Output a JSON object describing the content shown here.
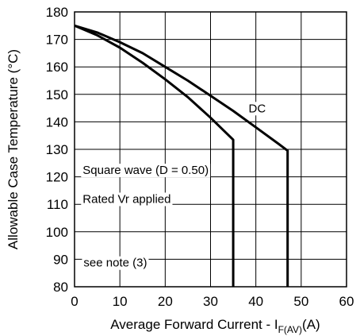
{
  "chart_data": {
    "type": "line",
    "title": "",
    "xlabel_main": "Average Forward Current - I",
    "xlabel_sub": "F(AV)",
    "xlabel_unit": "(A)",
    "ylabel": "Allowable Case Temperature (°C)",
    "xlim": [
      0,
      60
    ],
    "ylim": [
      80,
      180
    ],
    "xticks": [
      0,
      10,
      20,
      30,
      40,
      50,
      60
    ],
    "yticks": [
      80,
      90,
      100,
      110,
      120,
      130,
      140,
      150,
      160,
      170,
      180
    ],
    "grid": true,
    "series": [
      {
        "name": "DC",
        "color": "#000000",
        "points": [
          [
            0,
            175
          ],
          [
            5,
            172.5
          ],
          [
            10,
            169
          ],
          [
            15,
            165
          ],
          [
            20,
            160
          ],
          [
            25,
            155
          ],
          [
            30,
            149.5
          ],
          [
            35,
            144
          ],
          [
            40,
            138
          ],
          [
            45,
            132
          ],
          [
            47,
            129.5
          ],
          [
            47,
            80
          ]
        ]
      },
      {
        "name": "",
        "color": "#000000",
        "points": [
          [
            0,
            175
          ],
          [
            5,
            171.5
          ],
          [
            10,
            167
          ],
          [
            15,
            161.5
          ],
          [
            20,
            155.5
          ],
          [
            25,
            149
          ],
          [
            30,
            141.5
          ],
          [
            35,
            133.5
          ],
          [
            35,
            80
          ]
        ]
      }
    ],
    "annotations": {
      "dc": "DC",
      "square_wave": "Square wave (D = 0.50)",
      "rated": "Rated Vr  applied",
      "note": "see note (3)"
    }
  }
}
